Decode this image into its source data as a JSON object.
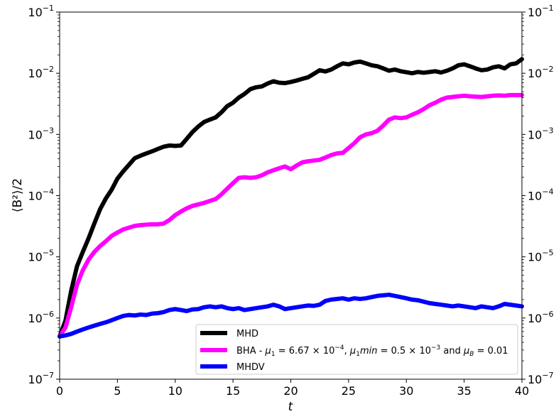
{
  "chart_data": {
    "type": "line",
    "xlabel": "t",
    "ylabel": "⟨B²⟩/2",
    "xlim": [
      0,
      40
    ],
    "ylim": [
      1e-07,
      0.1
    ],
    "yscale": "log",
    "grid": false,
    "legend_position": "bottom-right",
    "x_ticks": [
      0,
      5,
      10,
      15,
      20,
      25,
      30,
      35,
      40
    ],
    "y_ticks": [
      {
        "value": 1e-07,
        "base": "10",
        "exp": "−7"
      },
      {
        "value": 1e-06,
        "base": "10",
        "exp": "−6"
      },
      {
        "value": 1e-05,
        "base": "10",
        "exp": "−5"
      },
      {
        "value": 0.0001,
        "base": "10",
        "exp": "−4"
      },
      {
        "value": 0.001,
        "base": "10",
        "exp": "−3"
      },
      {
        "value": 0.01,
        "base": "10",
        "exp": "−2"
      },
      {
        "value": 0.1,
        "base": "10",
        "exp": "−1"
      }
    ],
    "series": [
      {
        "name": "MHD",
        "color": "#000000",
        "x": [
          0,
          0.5,
          1,
          1.5,
          2,
          2.5,
          3,
          3.5,
          4,
          4.5,
          5,
          5.5,
          6,
          6.5,
          7,
          7.5,
          8,
          8.5,
          9,
          9.5,
          10,
          10.5,
          11,
          11.5,
          12,
          12.5,
          13,
          13.5,
          14,
          14.5,
          15,
          15.5,
          16,
          16.5,
          17,
          17.5,
          18,
          18.5,
          19,
          19.5,
          20,
          20.5,
          21,
          21.5,
          22,
          22.5,
          23,
          23.5,
          24,
          24.5,
          25,
          25.5,
          26,
          26.5,
          27,
          27.5,
          28,
          28.5,
          29,
          29.5,
          30,
          30.5,
          31,
          31.5,
          32,
          32.5,
          33,
          33.5,
          34,
          34.5,
          35,
          35.5,
          36,
          36.5,
          37,
          37.5,
          38,
          38.5,
          39,
          39.5,
          40
        ],
        "y": [
          5e-07,
          9e-07,
          2.8e-06,
          7e-06,
          1.2e-05,
          2e-05,
          3.5e-05,
          6e-05,
          9e-05,
          0.000125,
          0.00019,
          0.00025,
          0.00032,
          0.00041,
          0.00045,
          0.00049,
          0.00053,
          0.00058,
          0.00063,
          0.00066,
          0.00065,
          0.00066,
          0.00085,
          0.0011,
          0.00135,
          0.0016,
          0.00175,
          0.0019,
          0.0023,
          0.0029,
          0.0033,
          0.004,
          0.0046,
          0.0055,
          0.0059,
          0.0061,
          0.0068,
          0.0074,
          0.007,
          0.0069,
          0.0072,
          0.0076,
          0.0081,
          0.0086,
          0.0098,
          0.0112,
          0.0107,
          0.0115,
          0.013,
          0.0145,
          0.014,
          0.015,
          0.0155,
          0.0145,
          0.0135,
          0.013,
          0.012,
          0.011,
          0.0115,
          0.0108,
          0.0104,
          0.01,
          0.0105,
          0.0102,
          0.0105,
          0.0108,
          0.0103,
          0.011,
          0.012,
          0.0135,
          0.014,
          0.013,
          0.012,
          0.0112,
          0.0115,
          0.0125,
          0.013,
          0.012,
          0.014,
          0.0145,
          0.017
        ]
      },
      {
        "name": "BHA - μ₁ = 6.67 × 10⁻⁴, μ₁min = 0.5 × 10⁻³ and μ_B = 0.01",
        "color": "#ff00ff",
        "x": [
          0,
          0.5,
          1,
          1.5,
          2,
          2.5,
          3,
          3.5,
          4,
          4.5,
          5,
          5.5,
          6,
          6.5,
          7,
          7.5,
          8,
          8.5,
          9,
          9.5,
          10,
          10.5,
          11,
          11.5,
          12,
          12.5,
          13,
          13.5,
          14,
          14.5,
          15,
          15.5,
          16,
          16.5,
          17,
          17.5,
          18,
          18.5,
          19,
          19.5,
          20,
          20.5,
          21,
          21.5,
          22,
          22.5,
          23,
          23.5,
          24,
          24.5,
          25,
          25.5,
          26,
          26.5,
          27,
          27.5,
          28,
          28.5,
          29,
          29.5,
          30,
          30.5,
          31,
          31.5,
          32,
          32.5,
          33,
          33.5,
          34,
          34.5,
          35,
          35.5,
          36,
          36.5,
          37,
          37.5,
          38,
          38.5,
          39,
          39.5,
          40
        ],
        "y": [
          5e-07,
          7e-07,
          1.5e-06,
          3.5e-06,
          6e-06,
          9e-06,
          1.2e-05,
          1.5e-05,
          1.8e-05,
          2.2e-05,
          2.5e-05,
          2.8e-05,
          3e-05,
          3.2e-05,
          3.3e-05,
          3.35e-05,
          3.4e-05,
          3.4e-05,
          3.5e-05,
          4e-05,
          4.8e-05,
          5.5e-05,
          6.2e-05,
          6.8e-05,
          7.2e-05,
          7.6e-05,
          8.2e-05,
          8.8e-05,
          0.000105,
          0.00013,
          0.00016,
          0.000195,
          0.0002,
          0.000195,
          0.0002,
          0.000215,
          0.00024,
          0.00026,
          0.00028,
          0.0003,
          0.00027,
          0.00031,
          0.00035,
          0.000365,
          0.000375,
          0.000385,
          0.00042,
          0.00046,
          0.00049,
          0.0005,
          0.0006,
          0.00072,
          0.0009,
          0.001,
          0.00105,
          0.00115,
          0.0014,
          0.00175,
          0.0019,
          0.00185,
          0.0019,
          0.0021,
          0.0023,
          0.0026,
          0.003,
          0.0033,
          0.0037,
          0.004,
          0.0041,
          0.0042,
          0.0043,
          0.0042,
          0.00415,
          0.0041,
          0.0042,
          0.0043,
          0.00435,
          0.0043,
          0.0044,
          0.0044,
          0.0044
        ]
      },
      {
        "name": "MHDV",
        "color": "#0000ff",
        "x": [
          0,
          0.5,
          1,
          1.5,
          2,
          2.5,
          3,
          3.5,
          4,
          4.5,
          5,
          5.5,
          6,
          6.5,
          7,
          7.5,
          8,
          8.5,
          9,
          9.5,
          10,
          10.5,
          11,
          11.5,
          12,
          12.5,
          13,
          13.5,
          14,
          14.5,
          15,
          15.5,
          16,
          16.5,
          17,
          17.5,
          18,
          18.5,
          19,
          19.5,
          20,
          20.5,
          21,
          21.5,
          22,
          22.5,
          23,
          23.5,
          24,
          24.5,
          25,
          25.5,
          26,
          26.5,
          27,
          27.5,
          28,
          28.5,
          29,
          29.5,
          30,
          30.5,
          31,
          31.5,
          32,
          32.5,
          33,
          33.5,
          34,
          34.5,
          35,
          35.5,
          36,
          36.5,
          37,
          37.5,
          38,
          38.5,
          39,
          39.5,
          40
        ],
        "y": [
          5e-07,
          5.2e-07,
          5.5e-07,
          6e-07,
          6.5e-07,
          7e-07,
          7.5e-07,
          8e-07,
          8.5e-07,
          9.2e-07,
          1e-06,
          1.08e-06,
          1.12e-06,
          1.1e-06,
          1.14e-06,
          1.12e-06,
          1.18e-06,
          1.2e-06,
          1.25e-06,
          1.35e-06,
          1.4e-06,
          1.35e-06,
          1.3e-06,
          1.38e-06,
          1.4e-06,
          1.5e-06,
          1.55e-06,
          1.5e-06,
          1.55e-06,
          1.45e-06,
          1.4e-06,
          1.45e-06,
          1.35e-06,
          1.4e-06,
          1.45e-06,
          1.5e-06,
          1.55e-06,
          1.65e-06,
          1.55e-06,
          1.4e-06,
          1.45e-06,
          1.5e-06,
          1.55e-06,
          1.6e-06,
          1.58e-06,
          1.65e-06,
          1.9e-06,
          2e-06,
          2.05e-06,
          2.1e-06,
          2e-06,
          2.1e-06,
          2.05e-06,
          2.1e-06,
          2.2e-06,
          2.3e-06,
          2.35e-06,
          2.4e-06,
          2.3e-06,
          2.2e-06,
          2.1e-06,
          2e-06,
          1.95e-06,
          1.85e-06,
          1.75e-06,
          1.7e-06,
          1.65e-06,
          1.6e-06,
          1.55e-06,
          1.6e-06,
          1.55e-06,
          1.5e-06,
          1.45e-06,
          1.55e-06,
          1.5e-06,
          1.45e-06,
          1.55e-06,
          1.7e-06,
          1.65e-06,
          1.6e-06,
          1.55e-06
        ]
      }
    ],
    "legend": [
      {
        "series": "MHD",
        "color": "#000000",
        "text": "MHD"
      },
      {
        "series": "BHA",
        "color": "#ff00ff",
        "prefix": "BHA - ",
        "mu1": "μ",
        "mu1_sub": "1",
        "eq1": " = 6.67 × 10",
        "exp1": "−4",
        "sep": ", ",
        "mu2": "μ",
        "mu2_sub": "1",
        "mu2_tail": "min",
        "eq2": " = 0.5 × 10",
        "exp2": "−3",
        "and": " and ",
        "mu3": "μ",
        "mu3_sub": "B",
        "eq3": " = 0.01"
      },
      {
        "series": "MHDV",
        "color": "#0000ff",
        "text": "MHDV"
      }
    ]
  }
}
